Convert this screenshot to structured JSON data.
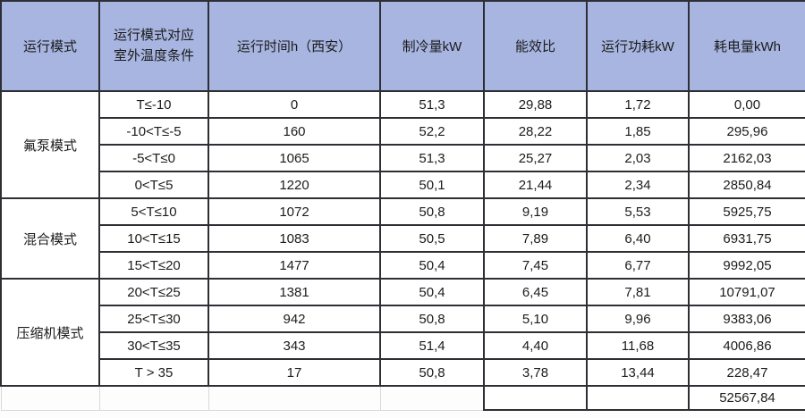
{
  "colors": {
    "header_bg": "#a7b5e0",
    "table_border": "#2e2e34",
    "gridline": "#d8d8d8",
    "text": "#1c1c1c",
    "row_bg": "#ffffff"
  },
  "chart_data": {
    "type": "table",
    "columns": [
      "运行模式",
      "运行模式对应室外温度条件",
      "运行时间h（西安）",
      "制冷量kW",
      "能效比",
      "运行功耗kW",
      "耗电量kWh"
    ],
    "row_groups": [
      {
        "mode": "氟泵模式",
        "rows": [
          [
            "T≤-10",
            "0",
            "51,3",
            "29,88",
            "1,72",
            "0,00"
          ],
          [
            "-10<T≤-5",
            "160",
            "52,2",
            "28,22",
            "1,85",
            "295,96"
          ],
          [
            "-5<T≤0",
            "1065",
            "51,3",
            "25,27",
            "2,03",
            "2162,03"
          ],
          [
            "0<T≤5",
            "1220",
            "50,1",
            "21,44",
            "2,34",
            "2850,84"
          ]
        ]
      },
      {
        "mode": "混合模式",
        "rows": [
          [
            "5<T≤10",
            "1072",
            "50,8",
            "9,19",
            "5,53",
            "5925,75"
          ],
          [
            "10<T≤15",
            "1083",
            "50,5",
            "7,89",
            "6,40",
            "6931,75"
          ],
          [
            "15<T≤20",
            "1477",
            "50,4",
            "7,45",
            "6,77",
            "9992,05"
          ]
        ]
      },
      {
        "mode": "压缩机模式",
        "rows": [
          [
            "20<T≤25",
            "1381",
            "50,4",
            "6,45",
            "7,81",
            "10791,07"
          ],
          [
            "25<T≤30",
            "942",
            "50,8",
            "5,10",
            "9,96",
            "9383,06"
          ],
          [
            "30<T≤35",
            "343",
            "51,4",
            "4,40",
            "11,68",
            "4006,86"
          ],
          [
            "T > 35",
            "17",
            "50,8",
            "3,78",
            "13,44",
            "228,47"
          ]
        ]
      }
    ],
    "total_kwh": "52567,84"
  }
}
